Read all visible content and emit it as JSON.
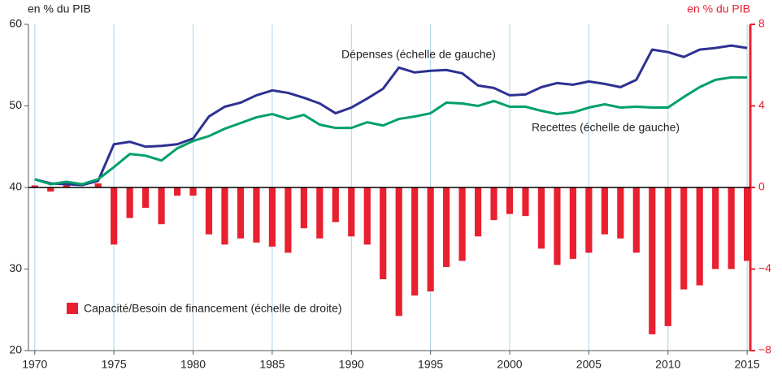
{
  "chart_data": {
    "type": "line-bar",
    "y_label": "en % du PIB",
    "y2_label": "en % du PIB",
    "x": [
      1970,
      1971,
      1972,
      1973,
      1974,
      1975,
      1976,
      1977,
      1978,
      1979,
      1980,
      1981,
      1982,
      1983,
      1984,
      1985,
      1986,
      1987,
      1988,
      1989,
      1990,
      1991,
      1992,
      1993,
      1994,
      1995,
      1996,
      1997,
      1998,
      1999,
      2000,
      2001,
      2002,
      2003,
      2004,
      2005,
      2006,
      2007,
      2008,
      2009,
      2010,
      2011,
      2012,
      2013,
      2014,
      2015
    ],
    "series": [
      {
        "name": "Dépenses (échelle de gauche)",
        "type": "line",
        "color": "#2e3192",
        "values": [
          41.0,
          40.5,
          40.4,
          40.3,
          40.8,
          45.3,
          45.6,
          45.0,
          45.1,
          45.3,
          46.0,
          48.7,
          49.9,
          50.4,
          51.3,
          51.9,
          51.6,
          51.0,
          50.3,
          49.1,
          49.8,
          50.9,
          52.1,
          54.7,
          54.1,
          54.3,
          54.4,
          54.0,
          52.5,
          52.2,
          51.3,
          51.4,
          52.3,
          52.8,
          52.6,
          53.0,
          52.7,
          52.3,
          53.2,
          56.9,
          56.6,
          56.0,
          56.9,
          57.1,
          57.4,
          57.1
        ]
      },
      {
        "name": "Recettes (échelle de gauche)",
        "type": "line",
        "color": "#00a06a",
        "values": [
          41.0,
          40.4,
          40.7,
          40.4,
          41.0,
          42.5,
          44.1,
          43.9,
          43.3,
          44.8,
          45.7,
          46.3,
          47.2,
          47.9,
          48.6,
          49.0,
          48.4,
          48.9,
          47.7,
          47.3,
          47.3,
          48.0,
          47.6,
          48.4,
          48.7,
          49.1,
          50.4,
          50.3,
          50.0,
          50.6,
          49.9,
          49.9,
          49.4,
          49.0,
          49.2,
          49.8,
          50.2,
          49.8,
          49.9,
          49.8,
          49.8,
          51.1,
          52.3,
          53.2,
          53.5,
          53.5
        ]
      },
      {
        "name": "Capacité/Besoin de financement (échelle de droite)",
        "type": "bar",
        "axis": "y2",
        "color": "#e8202f",
        "values": [
          0.1,
          -0.2,
          0.1,
          0,
          0.2,
          -2.8,
          -1.5,
          -1.0,
          -1.8,
          -0.4,
          -0.4,
          -2.3,
          -2.8,
          -2.5,
          -2.7,
          -2.9,
          -3.2,
          -2.0,
          -2.5,
          -1.7,
          -2.4,
          -2.8,
          -4.5,
          -6.3,
          -5.3,
          -5.1,
          -3.9,
          -3.6,
          -2.4,
          -1.6,
          -1.3,
          -1.4,
          -3.0,
          -3.8,
          -3.5,
          -3.2,
          -2.3,
          -2.5,
          -3.2,
          -7.2,
          -6.8,
          -5.0,
          -4.8,
          -4.0,
          -4.0,
          -3.6
        ]
      }
    ],
    "xlim": [
      1969.6,
      2015.2
    ],
    "xticks": [
      1970,
      1975,
      1980,
      1985,
      1990,
      1995,
      2000,
      2005,
      2010,
      2015
    ],
    "ylim": [
      20,
      60
    ],
    "yticks": [
      20,
      30,
      40,
      50,
      60
    ],
    "y2lim": [
      -8,
      8
    ],
    "y2ticks": [
      {
        "value": -8,
        "label": "−8"
      },
      {
        "value": -4,
        "label": "−4"
      },
      0,
      4,
      8
    ],
    "grid": "x"
  }
}
